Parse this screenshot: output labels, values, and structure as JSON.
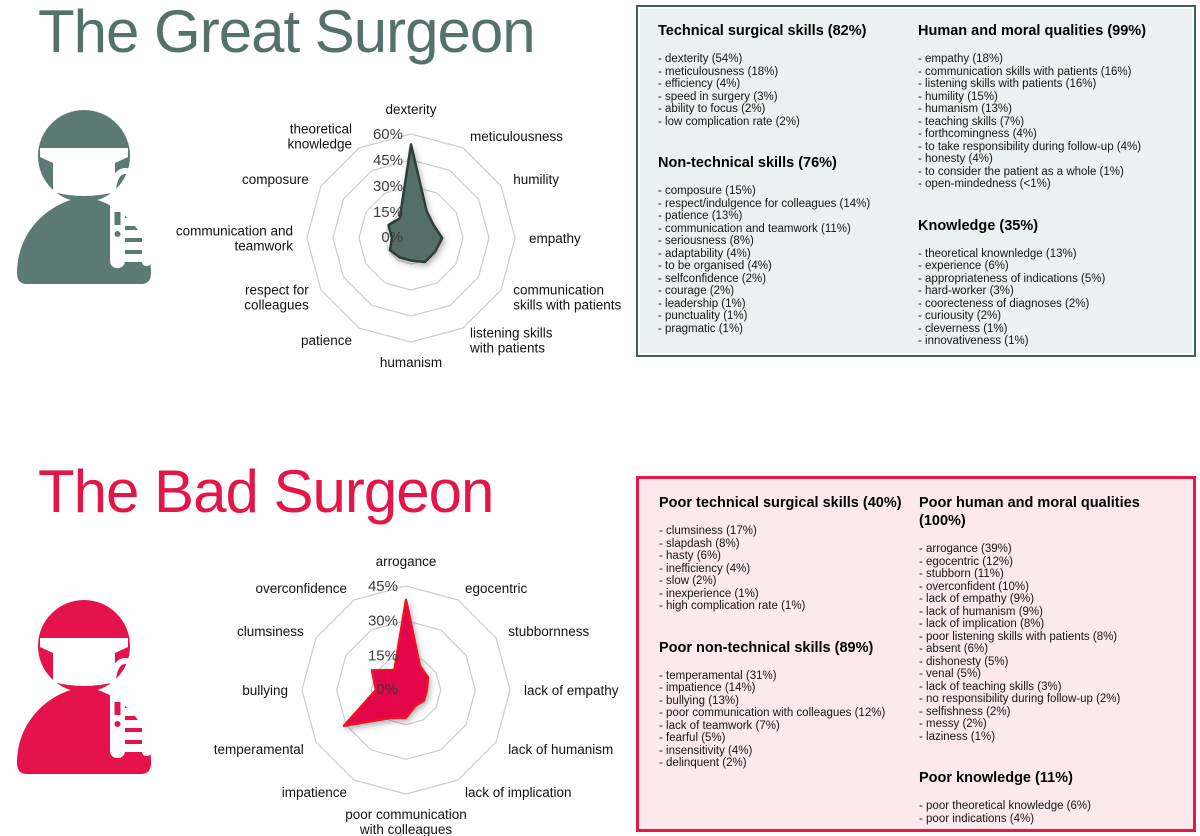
{
  "great": {
    "title": "The Great Surgeon",
    "colors": {
      "title": "#54716b",
      "icon": "#5c7a74",
      "box_bg": "#e9f2f0",
      "box_border": "#3f605b"
    },
    "panel": {
      "columns": [
        {
          "sections": [
            {
              "heading": "Technical surgical skills (82%)",
              "items": [
                "dexterity (54%)",
                "meticulousness (18%)",
                "efficiency (4%)",
                "speed in surgery (3%)",
                "ability to focus (2%)",
                "low complication rate (2%)"
              ]
            },
            {
              "heading": "Non-technical skills (76%)",
              "items": [
                "composure (15%)",
                "respect/indulgence for colleagues (14%)",
                "patience (13%)",
                "communication and teamwork (11%)",
                "seriousness (8%)",
                "adaptability (4%)",
                "to be organised (4%)",
                "selfconfidence (2%)",
                "courage (2%)",
                "leadership (1%)",
                "punctuality (1%)",
                "pragmatic (1%)"
              ]
            }
          ]
        },
        {
          "sections": [
            {
              "heading": "Human and moral qualities (99%)",
              "items": [
                "empathy (18%)",
                "communication skills with patients (16%)",
                "listening skills with patients (16%)",
                "humility (15%)",
                "humanism (13%)",
                "teaching skills (7%)",
                "forthcomingness (4%)",
                "to take responsibility during follow-up (4%)",
                "honesty (4%)",
                "to consider the patient as a whole (1%)",
                "open-mindedness (<1%)"
              ]
            },
            {
              "heading": "Knowledge (35%)",
              "items": [
                "theoretical knownledge (13%)",
                "experience (6%)",
                "appropriateness of indications (5%)",
                "hard-worker (3%)",
                "coorecteness of diagnoses (2%)",
                "curiousity (2%)",
                "cleverness (1%)",
                "innovativeness (1%)"
              ]
            }
          ]
        }
      ]
    }
  },
  "bad": {
    "title": "The Bad Surgeon",
    "colors": {
      "title": "#e21748",
      "icon": "#e5134b",
      "box_bg": "#fbe9ed",
      "box_border": "#e8174a"
    },
    "panel": {
      "columns": [
        {
          "sections": [
            {
              "heading": "Poor technical surgical skills (40%)",
              "items": [
                "clumsiness (17%)",
                "slapdash (8%)",
                "hasty (6%)",
                "inefficiency (4%)",
                "slow (2%)",
                "inexperience (1%)",
                "high complication rate (1%)"
              ]
            },
            {
              "heading": "Poor non-technical skills (89%)",
              "items": [
                "temperamental (31%)",
                "impatience (14%)",
                "bullying (13%)",
                "poor communication with colleagues (12%)",
                "lack of teamwork (7%)",
                "fearful (5%)",
                "insensitivity (4%)",
                "delinquent (2%)"
              ]
            }
          ]
        },
        {
          "sections": [
            {
              "heading": "Poor human and moral qualities (100%)",
              "items": [
                "arrogance (39%)",
                "egocentric (12%)",
                "stubborn (11%)",
                "overconfident (10%)",
                "lack of empathy (9%)",
                "lack of humanism (9%)",
                "lack of implication (8%)",
                "poor listening skills with patients (8%)",
                "absent (6%)",
                "dishonesty (5%)",
                "venal (5%)",
                "lack of teaching skills (3%)",
                "no responsibility during follow-up (2%)",
                "selfishness (2%)",
                "messy (2%)",
                "laziness (1%)"
              ]
            },
            {
              "heading": "Poor knowledge (11%)",
              "items": [
                "poor theoretical knowledge (6%)",
                "poor indications (4%)"
              ]
            }
          ]
        }
      ]
    }
  },
  "chart_data": [
    {
      "type": "radar",
      "title": "The Great Surgeon",
      "categories": [
        "dexterity",
        "meticulousness",
        "humility",
        "empathy",
        "communication\nskills with patients",
        "listening skills\nwith patients",
        "humanism",
        "patience",
        "respect for\ncolleagues",
        "communication and\nteamwork",
        "composure",
        "theoretical\nknowledge"
      ],
      "values": [
        54,
        18,
        15,
        18,
        16,
        16,
        13,
        13,
        14,
        11,
        15,
        13
      ],
      "rmax": 60,
      "ticks": [
        0,
        15,
        30,
        45,
        60
      ],
      "tick_labels": [
        "0%",
        "15%",
        "30%",
        "45%",
        "60%"
      ],
      "grid": "polygon",
      "legend": "none",
      "fill": "#546f68",
      "stroke": "#2e3d3a"
    },
    {
      "type": "radar",
      "title": "The Bad Surgeon",
      "categories": [
        "arrogance",
        "egocentric",
        "stubbornness",
        "lack of empathy",
        "lack of humanism",
        "lack of implication",
        "poor communication\nwith colleagues",
        "impatience",
        "temperamental",
        "bullying",
        "clumsiness",
        "overconfidence"
      ],
      "values": [
        39,
        12,
        11,
        9,
        9,
        8,
        12,
        14,
        31,
        13,
        17,
        10
      ],
      "rmax": 45,
      "ticks": [
        0,
        15,
        30,
        45
      ],
      "tick_labels": [
        "0%",
        "15%",
        "30%",
        "45%"
      ],
      "grid": "polygon",
      "legend": "none",
      "fill": "#e4064a",
      "stroke": "#ef1125"
    }
  ]
}
